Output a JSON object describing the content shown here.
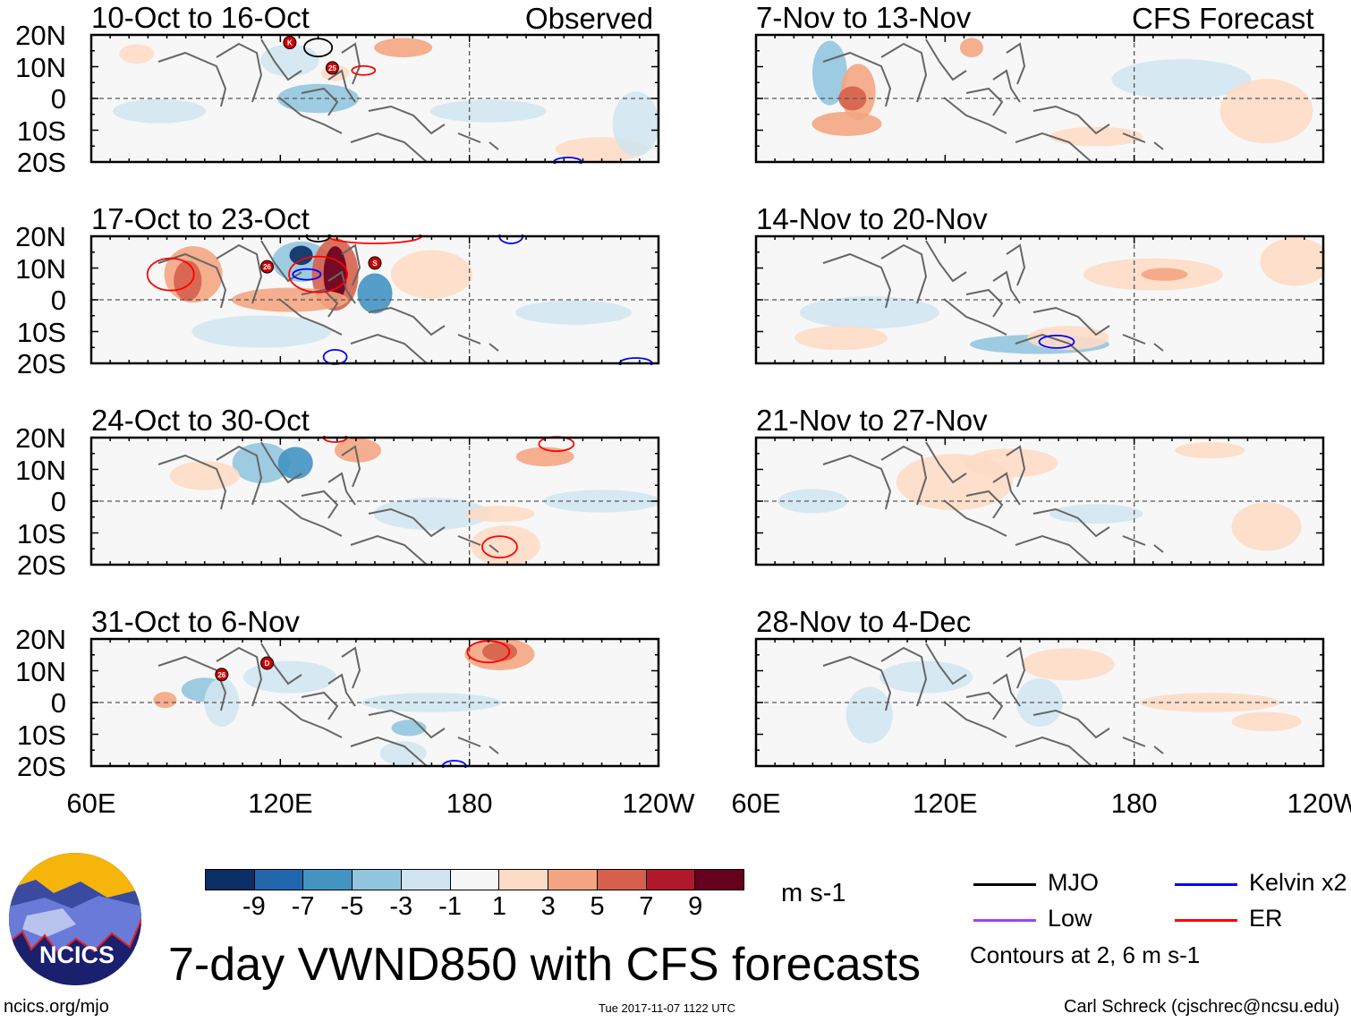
{
  "title": "7-day VWND850 with CFS forecasts",
  "headers": {
    "observed": "Observed",
    "forecast": "CFS Forecast"
  },
  "panels": [
    {
      "label": "10-Oct to 16-Oct",
      "column": "observed",
      "storms": [
        "K",
        "25"
      ]
    },
    {
      "label": "17-Oct to 23-Oct",
      "column": "observed",
      "storms": [
        "26",
        "S"
      ]
    },
    {
      "label": "24-Oct to 30-Oct",
      "column": "observed",
      "storms": []
    },
    {
      "label": "31-Oct to 6-Nov",
      "column": "observed",
      "storms": [
        "26",
        "D"
      ]
    },
    {
      "label": "7-Nov to 13-Nov",
      "column": "forecast",
      "storms": []
    },
    {
      "label": "14-Nov to 20-Nov",
      "column": "forecast",
      "storms": []
    },
    {
      "label": "21-Nov to 27-Nov",
      "column": "forecast",
      "storms": []
    },
    {
      "label": "28-Nov to 4-Dec",
      "column": "forecast",
      "storms": []
    }
  ],
  "lat_labels": [
    "20N",
    "10N",
    "0",
    "10S",
    "20S"
  ],
  "lon_labels": [
    "60E",
    "120E",
    "180",
    "120W"
  ],
  "colorbar": {
    "colors": [
      "#0a2f64",
      "#2166ac",
      "#4393c3",
      "#92c5de",
      "#d1e5f0",
      "#f7f7f7",
      "#fddbc7",
      "#f4a582",
      "#d6604d",
      "#b2182b",
      "#67001f"
    ],
    "ticks": [
      "-9",
      "-7",
      "-5",
      "-3",
      "-1",
      "1",
      "3",
      "5",
      "7",
      "9"
    ],
    "units": "m s-1"
  },
  "legend": {
    "items": [
      {
        "label": "MJO",
        "color": "#000000"
      },
      {
        "label": "Kelvin x2",
        "color": "#0000ff"
      },
      {
        "label": "Low",
        "color": "#a040ff"
      },
      {
        "label": "ER",
        "color": "#ff0000"
      }
    ],
    "note": "Contours at 2, 6 m s-1"
  },
  "logo": "NCICS",
  "footer": {
    "left": "ncics.org/mjo",
    "center": "Tue 2017-11-07 1122 UTC",
    "right": "Carl Schreck (cjschrec@ncsu.edu)"
  }
}
